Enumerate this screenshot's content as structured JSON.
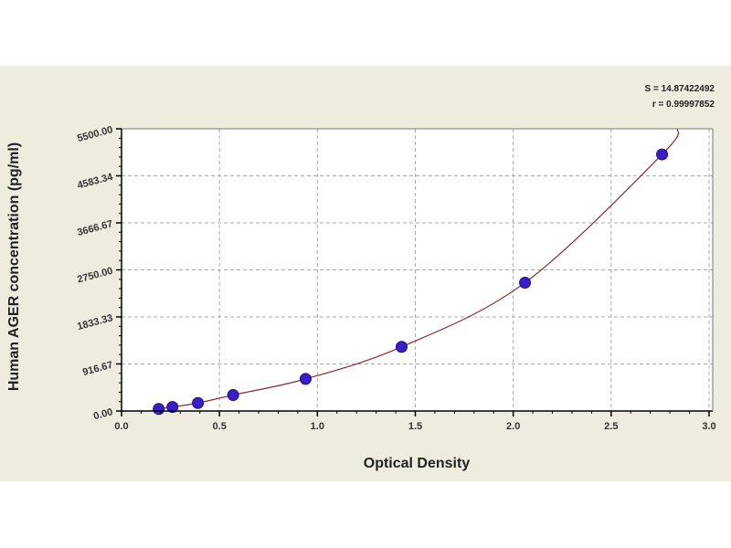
{
  "chart_data": {
    "type": "scatter",
    "title": "",
    "xlabel": "Optical Density",
    "ylabel": "Human AGER concentration (pg/ml)",
    "xlim": [
      0,
      3.0
    ],
    "ylim": [
      0,
      5500
    ],
    "x_ticks": [
      "0.0",
      "0.5",
      "1.0",
      "1.5",
      "2.0",
      "2.5",
      "3.0"
    ],
    "y_ticks": [
      "0.00",
      "916.67",
      "1833.33",
      "2750.00",
      "3666.67",
      "4583.34",
      "5500.00"
    ],
    "grid": true,
    "series": [
      {
        "x": [
          0.19,
          0.26,
          0.39,
          0.57,
          0.94,
          1.43,
          2.06,
          2.76
        ],
        "y": [
          39,
          78,
          156,
          312,
          625,
          1250,
          2500,
          5000
        ],
        "marker_color": "#3a1fc8",
        "fit_curve_color": "#8b2a2a"
      }
    ],
    "annotations": [
      "S = 14.87422492",
      "r = 0.99997852"
    ]
  }
}
